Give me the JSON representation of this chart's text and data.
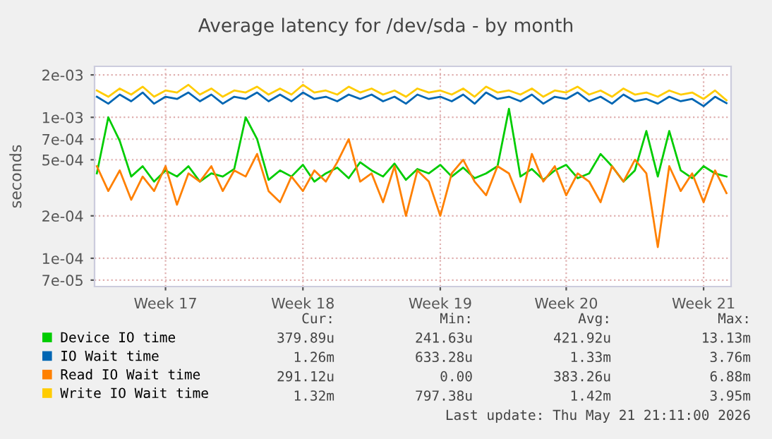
{
  "chart_data": {
    "type": "line",
    "title": "Average latency for /dev/sda - by month",
    "ylabel": "seconds",
    "categories": [
      null,
      null,
      null,
      null,
      null,
      null,
      "Week 17",
      null,
      null,
      null,
      null,
      null,
      null,
      null,
      null,
      null,
      null,
      null,
      "Week 18",
      null,
      null,
      null,
      null,
      null,
      null,
      null,
      null,
      null,
      null,
      null,
      "Week 19",
      null,
      null,
      null,
      null,
      null,
      null,
      null,
      null,
      null,
      null,
      "Week 20",
      null,
      null,
      null,
      null,
      null,
      null,
      null,
      null,
      null,
      null,
      null,
      "Week 21",
      null,
      null
    ],
    "series": [
      {
        "name": "Device IO time",
        "color": "#00cc00",
        "values": [
          0.0004,
          0.001,
          0.00068,
          0.00038,
          0.00045,
          0.00035,
          0.00042,
          0.00038,
          0.00045,
          0.00035,
          0.0004,
          0.00038,
          0.00043,
          0.001,
          0.0007,
          0.00036,
          0.00042,
          0.00038,
          0.00046,
          0.00035,
          0.0004,
          0.00044,
          0.00037,
          0.00048,
          0.00042,
          0.00038,
          0.00047,
          0.00036,
          0.00043,
          0.0004,
          0.00046,
          0.00038,
          0.00044,
          0.00037,
          0.0004,
          0.00045,
          0.00115,
          0.00038,
          0.00043,
          0.00036,
          0.00042,
          0.00046,
          0.00037,
          0.0004,
          0.00055,
          0.00045,
          0.00035,
          0.00042,
          0.0008,
          0.00038,
          0.0008,
          0.00042,
          0.00037,
          0.00045,
          0.0004,
          0.00038
        ]
      },
      {
        "name": "IO Wait time",
        "color": "#0066b3",
        "values": [
          0.0014,
          0.00125,
          0.00145,
          0.0013,
          0.0015,
          0.00125,
          0.0014,
          0.00135,
          0.0015,
          0.0013,
          0.00145,
          0.00125,
          0.0014,
          0.00135,
          0.0015,
          0.0013,
          0.00145,
          0.0013,
          0.0015,
          0.00135,
          0.0014,
          0.0013,
          0.00145,
          0.00135,
          0.00145,
          0.0013,
          0.0014,
          0.00125,
          0.00145,
          0.00135,
          0.0014,
          0.0013,
          0.00145,
          0.00125,
          0.0015,
          0.00135,
          0.0014,
          0.0013,
          0.00145,
          0.00125,
          0.0014,
          0.00135,
          0.0015,
          0.0013,
          0.0014,
          0.00125,
          0.00145,
          0.0013,
          0.00135,
          0.00125,
          0.0014,
          0.0013,
          0.00135,
          0.0012,
          0.0014,
          0.00126
        ]
      },
      {
        "name": "Read IO Wait time",
        "color": "#ff8000",
        "values": [
          0.00045,
          0.0003,
          0.00042,
          0.00026,
          0.00038,
          0.0003,
          0.00045,
          0.00024,
          0.0004,
          0.00035,
          0.00045,
          0.0003,
          0.00042,
          0.00038,
          0.00055,
          0.0003,
          0.00025,
          0.00038,
          0.0003,
          0.00042,
          0.00035,
          0.00048,
          0.0007,
          0.00035,
          0.0004,
          0.00025,
          0.00045,
          0.0002,
          0.00042,
          0.00035,
          0.0002,
          0.0004,
          0.0005,
          0.00035,
          0.00028,
          0.00045,
          0.0004,
          0.00025,
          0.00055,
          0.00035,
          0.00045,
          0.00028,
          0.0004,
          0.00035,
          0.00025,
          0.00045,
          0.00035,
          0.0005,
          0.0004,
          0.00012,
          0.00045,
          0.0003,
          0.0004,
          0.00025,
          0.00042,
          0.00029
        ]
      },
      {
        "name": "Write IO Wait time",
        "color": "#ffcc00",
        "values": [
          0.00155,
          0.0014,
          0.0016,
          0.00145,
          0.00165,
          0.0014,
          0.00155,
          0.0015,
          0.0017,
          0.00145,
          0.0016,
          0.0014,
          0.00155,
          0.0015,
          0.00165,
          0.00145,
          0.0016,
          0.00145,
          0.0017,
          0.0015,
          0.00155,
          0.00145,
          0.00165,
          0.0015,
          0.0016,
          0.00145,
          0.00155,
          0.0014,
          0.0016,
          0.0015,
          0.00155,
          0.00145,
          0.0016,
          0.0014,
          0.00165,
          0.0015,
          0.00155,
          0.00145,
          0.0016,
          0.0014,
          0.00155,
          0.0015,
          0.00165,
          0.00145,
          0.00155,
          0.0014,
          0.0016,
          0.00145,
          0.0015,
          0.0014,
          0.00155,
          0.00145,
          0.0015,
          0.00135,
          0.00155,
          0.00132
        ]
      }
    ],
    "log": "y",
    "ylim": [
      6.3e-05,
      0.0023
    ],
    "yticks": [
      {
        "value": 7e-05,
        "label": "7e-05"
      },
      {
        "value": 0.0001,
        "label": "1e-04"
      },
      {
        "value": 0.0002,
        "label": "2e-04"
      },
      {
        "value": 0.0005,
        "label": "5e-04"
      },
      {
        "value": 0.0007,
        "label": "7e-04"
      },
      {
        "value": 0.001,
        "label": "1e-03"
      },
      {
        "value": 0.002,
        "label": "2e-03"
      }
    ],
    "grid": true,
    "legend": "bottom",
    "marker": "none",
    "line_style": "solid",
    "annotations": [
      "Cur:",
      "Min:",
      "Avg:",
      "Max:",
      "379.89u",
      "241.63u",
      "421.92u",
      "13.13m",
      "1.26m",
      "633.28u",
      "1.33m",
      "3.76m",
      "291.12u",
      "0.00",
      "383.26u",
      "6.88m",
      "1.32m",
      "797.38u",
      "1.42m",
      "3.95m",
      "Last update: Thu May 21 21:11:00 2026"
    ]
  }
}
